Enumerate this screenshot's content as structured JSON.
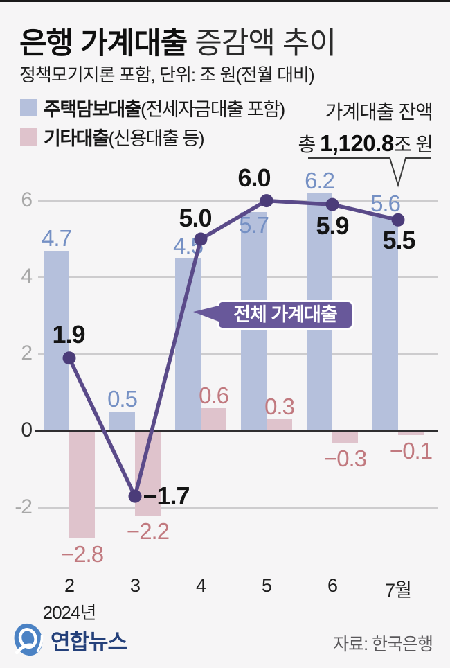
{
  "header": {
    "title_bold": "은행 가계대출",
    "title_rest": " 증감액 추이",
    "subtitle": "정책모기지론 포함, 단위: 조 원(전월 대비)"
  },
  "legend": {
    "items": [
      {
        "bold": "주택담보대출",
        "rest": "(전세자금대출 포함)"
      },
      {
        "bold": "기타대출",
        "rest": "(신용대출 등)"
      }
    ]
  },
  "balance_annotation": {
    "line1": "가계대출 잔액",
    "prefix": "총 ",
    "value": "1,120.8",
    "suffix": "조 원"
  },
  "callout": {
    "label": "전체 가계대출"
  },
  "chart_data": {
    "type": "composed-bar-line",
    "title": "은행 가계대출 증감액 추이",
    "unit": "조 원(전월 대비)",
    "categories": [
      "2",
      "3",
      "4",
      "5",
      "6",
      "7월"
    ],
    "x_sub_label": "2024년",
    "yticks": [
      6,
      4,
      2,
      0,
      -2
    ],
    "ylim": [
      -3.4,
      7.2
    ],
    "grid": true,
    "series": [
      {
        "name": "주택담보대출(전세자금대출 포함)",
        "type": "bar",
        "color": "#b5c0dc",
        "label_color": "#7590c4",
        "values": [
          4.7,
          0.5,
          4.5,
          5.7,
          6.2,
          5.6
        ],
        "label_inside": [
          false,
          false,
          false,
          true,
          false,
          false
        ]
      },
      {
        "name": "기타대출(신용대출 등)",
        "type": "bar",
        "color": "#dfc3cc",
        "label_color": "#c1797f",
        "values": [
          -2.8,
          -2.2,
          0.6,
          0.3,
          -0.3,
          -0.1
        ]
      },
      {
        "name": "전체 가계대출",
        "type": "line",
        "color": "#5a4a89",
        "dot_color": "#4b3c79",
        "label_color": "#141414",
        "values": [
          1.9,
          -1.7,
          5.0,
          6.0,
          5.9,
          5.5
        ],
        "label_offsets": [
          [
            -1,
            -34
          ],
          [
            45,
            0
          ],
          [
            -8,
            -30
          ],
          [
            -18,
            -33
          ],
          [
            0,
            31
          ],
          [
            1,
            30
          ]
        ]
      }
    ]
  },
  "footer": {
    "logo_text": "연합뉴스",
    "source": "자료: 한국은행"
  }
}
